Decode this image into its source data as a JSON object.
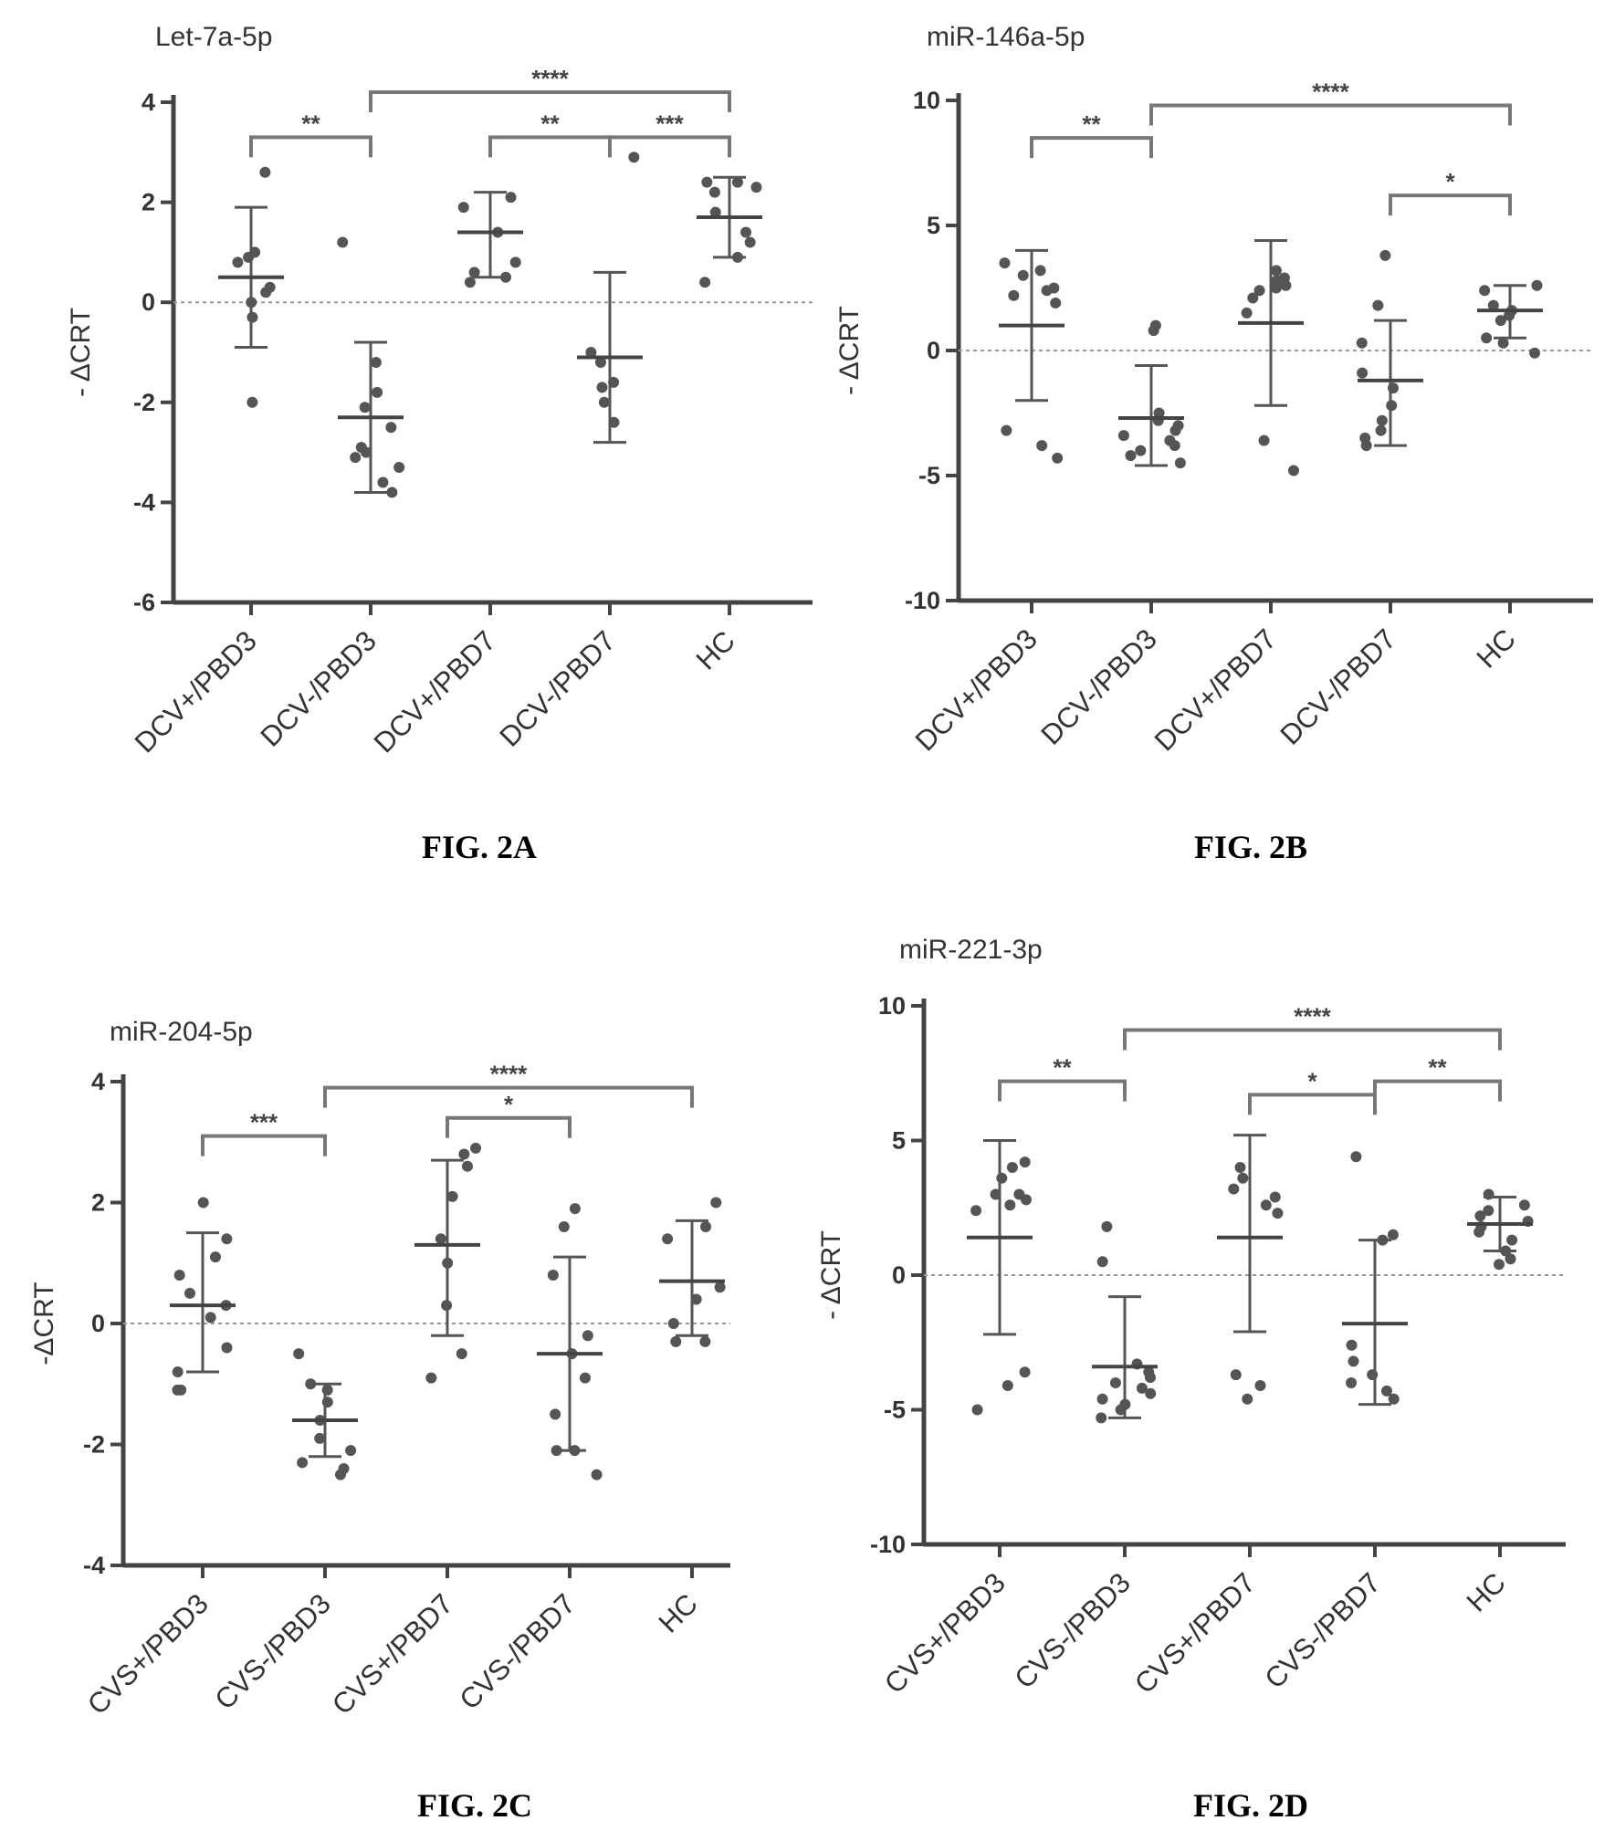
{
  "chart_data": [
    {
      "type": "scatter",
      "caption": "FIG. 2A",
      "title": "Let-7a-5p",
      "ylabel": "- ΔCRT",
      "ylim": [
        -6,
        4
      ],
      "yticks": [
        4,
        2,
        0,
        -2,
        -4,
        -6
      ],
      "ytick_labels": [
        "4",
        "2",
        "0",
        "-2",
        "-4",
        "-6"
      ],
      "categories": [
        "DCV+/PBD3",
        "DCV-/PBD3",
        "DCV+/PBD7",
        "DCV-/PBD7",
        "HC"
      ],
      "points": [
        [
          2.6,
          1.0,
          0.9,
          0.8,
          0.3,
          0.2,
          0.0,
          -0.3,
          -2.0
        ],
        [
          1.2,
          -1.2,
          -1.8,
          -2.1,
          -2.5,
          -2.9,
          -3.0,
          -3.1,
          -3.3,
          -3.6,
          -3.8
        ],
        [
          2.1,
          1.9,
          1.4,
          0.8,
          0.6,
          0.5,
          0.4
        ],
        [
          2.9,
          -1.0,
          -1.2,
          -1.6,
          -1.7,
          -2.0,
          -2.4
        ],
        [
          2.4,
          2.4,
          2.3,
          2.2,
          1.8,
          1.4,
          1.2,
          0.9,
          0.4
        ]
      ],
      "mean": [
        0.5,
        -2.3,
        1.4,
        -1.1,
        1.7
      ],
      "err_hi": [
        1.9,
        -0.8,
        2.2,
        0.6,
        2.5
      ],
      "err_lo": [
        -0.9,
        -3.8,
        0.5,
        -2.8,
        0.9
      ],
      "significance": [
        {
          "from": 0,
          "to": 1,
          "label": "**",
          "y": 3.3
        },
        {
          "from": 1,
          "to": 4,
          "label": "****",
          "y": 4.2
        },
        {
          "from": 2,
          "to": 3,
          "label": "**",
          "y": 3.3
        },
        {
          "from": 3,
          "to": 4,
          "label": "***",
          "y": 3.3
        }
      ]
    },
    {
      "type": "scatter",
      "caption": "FIG. 2B",
      "title": "miR-146a-5p",
      "ylabel": "- ΔCRT",
      "ylim": [
        -10,
        10
      ],
      "yticks": [
        10,
        5,
        0,
        -5,
        -10
      ],
      "ytick_labels": [
        "10",
        "5",
        "0",
        "-5",
        "-10"
      ],
      "categories": [
        "DCV+/PBD3",
        "DCV-/PBD3",
        "DCV+/PBD7",
        "DCV-/PBD7",
        "HC"
      ],
      "points": [
        [
          3.5,
          3.0,
          2.5,
          2.2,
          1.9,
          3.2,
          2.4,
          -3.2,
          -3.8,
          -4.3
        ],
        [
          1.0,
          0.8,
          -2.5,
          -2.8,
          -3.0,
          -3.2,
          -3.4,
          -3.6,
          -3.8,
          -4.0,
          -4.2,
          -4.5
        ],
        [
          3.2,
          2.9,
          2.8,
          2.6,
          2.5,
          2.4,
          2.1,
          1.5,
          -3.6,
          -4.8
        ],
        [
          3.8,
          1.8,
          0.3,
          -0.9,
          -1.5,
          -2.2,
          -2.8,
          -3.2,
          -3.5,
          -3.8
        ],
        [
          2.6,
          2.4,
          1.8,
          1.6,
          1.4,
          1.2,
          0.5,
          0.3,
          -0.1
        ]
      ],
      "mean": [
        1.0,
        -2.7,
        1.1,
        -1.2,
        1.6
      ],
      "err_hi": [
        4.0,
        -0.6,
        4.4,
        1.2,
        2.6
      ],
      "err_lo": [
        -2.0,
        -4.6,
        -2.2,
        -3.8,
        0.5
      ],
      "significance": [
        {
          "from": 0,
          "to": 1,
          "label": "**",
          "y": 8.5
        },
        {
          "from": 1,
          "to": 4,
          "label": "****",
          "y": 9.8
        },
        {
          "from": 3,
          "to": 4,
          "label": "*",
          "y": 6.2
        }
      ]
    },
    {
      "type": "scatter",
      "caption": "FIG. 2C",
      "title": "miR-204-5p",
      "ylabel": "-ΔCRT",
      "ylim": [
        -4,
        4
      ],
      "yticks": [
        4,
        2,
        0,
        -2,
        -4
      ],
      "ytick_labels": [
        "4",
        "2",
        "0",
        "-2",
        "-4"
      ],
      "categories": [
        "CVS+/PBD3",
        "CVS-/PBD3",
        "CVS+/PBD7",
        "CVS-/PBD7",
        "HC"
      ],
      "points": [
        [
          2.0,
          1.4,
          1.1,
          0.8,
          0.5,
          0.3,
          0.1,
          -0.4,
          -0.8,
          -1.1,
          -1.1
        ],
        [
          -0.5,
          -1.0,
          -1.1,
          -1.3,
          -1.6,
          -1.9,
          -2.1,
          -2.3,
          -2.4,
          -2.5
        ],
        [
          2.9,
          2.8,
          2.6,
          2.1,
          1.4,
          1.0,
          0.3,
          -0.5,
          -0.9
        ],
        [
          1.9,
          1.6,
          0.8,
          -0.2,
          -0.5,
          -0.9,
          -1.5,
          -2.1,
          -2.1,
          -2.5
        ],
        [
          2.0,
          1.6,
          1.4,
          0.6,
          0.4,
          0.0,
          -0.3,
          -0.3
        ]
      ],
      "mean": [
        0.3,
        -1.6,
        1.3,
        -0.5,
        0.7
      ],
      "err_hi": [
        1.5,
        -1.0,
        2.7,
        1.1,
        1.7
      ],
      "err_lo": [
        -0.8,
        -2.2,
        -0.2,
        -2.1,
        -0.2
      ],
      "significance": [
        {
          "from": 0,
          "to": 1,
          "label": "***",
          "y": 3.1
        },
        {
          "from": 1,
          "to": 4,
          "label": "****",
          "y": 3.9
        },
        {
          "from": 2,
          "to": 3,
          "label": "*",
          "y": 3.4
        }
      ]
    },
    {
      "type": "scatter",
      "caption": "FIG. 2D",
      "title": "miR-221-3p",
      "ylabel": "- ΔCRT",
      "ylim": [
        -10,
        10
      ],
      "yticks": [
        10,
        5,
        0,
        -5,
        -10
      ],
      "ytick_labels": [
        "10",
        "5",
        "0",
        "-5",
        "-10"
      ],
      "categories": [
        "CVS+/PBD3",
        "CVS-/PBD3",
        "CVS+/PBD7",
        "CVS-/PBD7",
        "HC"
      ],
      "points": [
        [
          4.2,
          4.0,
          3.6,
          3.0,
          3.0,
          2.6,
          2.4,
          2.8,
          -3.6,
          -4.1,
          -5.0
        ],
        [
          1.8,
          0.5,
          -3.3,
          -3.6,
          -3.8,
          -4.0,
          -4.2,
          -4.4,
          -4.6,
          -4.8,
          -5.0,
          -5.3
        ],
        [
          4.0,
          3.6,
          3.2,
          2.9,
          2.6,
          2.3,
          -3.7,
          -4.1,
          -4.6
        ],
        [
          4.4,
          1.5,
          1.3,
          -2.6,
          -3.2,
          -3.7,
          -4.0,
          -4.3,
          -4.6
        ],
        [
          3.0,
          2.6,
          2.4,
          2.2,
          2.0,
          1.8,
          1.6,
          1.3,
          0.9,
          0.6,
          0.4
        ]
      ],
      "mean": [
        1.4,
        -3.4,
        1.4,
        -1.8,
        1.9
      ],
      "err_hi": [
        5.0,
        -0.8,
        5.2,
        1.3,
        2.9
      ],
      "err_lo": [
        -2.2,
        -5.3,
        -2.1,
        -4.8,
        0.9
      ],
      "significance": [
        {
          "from": 0,
          "to": 1,
          "label": "**",
          "y": 7.2
        },
        {
          "from": 1,
          "to": 4,
          "label": "****",
          "y": 9.1
        },
        {
          "from": 2,
          "to": 3,
          "label": "*",
          "y": 6.7
        },
        {
          "from": 3,
          "to": 4,
          "label": "**",
          "y": 7.2
        }
      ]
    }
  ]
}
